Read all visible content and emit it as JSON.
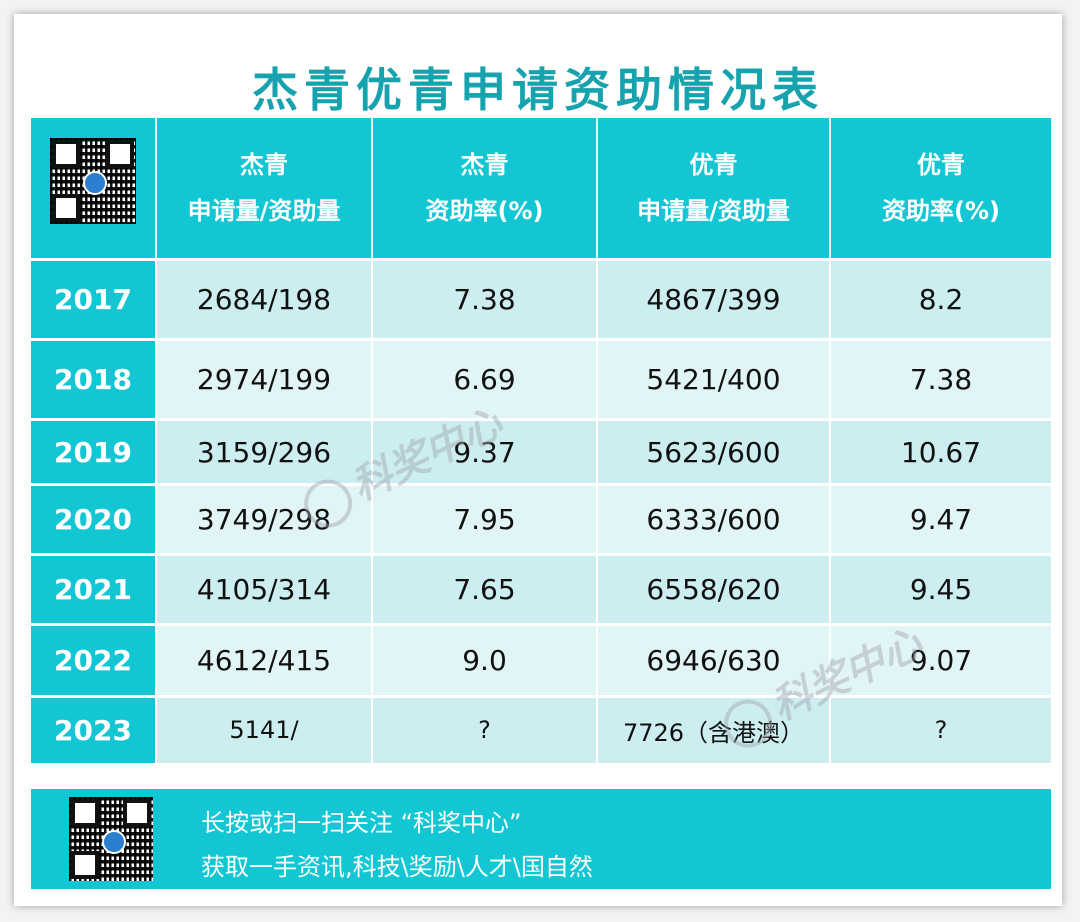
{
  "title": "杰青优青申请资助情况表",
  "header": {
    "col1": [
      "杰青",
      "申请量/资助量"
    ],
    "col2": [
      "杰青",
      "资助率(%)"
    ],
    "col3": [
      "优青",
      "申请量/资助量"
    ],
    "col4": [
      "优青",
      "资助率(%)"
    ]
  },
  "rows": [
    {
      "year": "2017",
      "jq_apply": "2684/198",
      "jq_rate": "7.38",
      "yq_apply": "4867/399",
      "yq_rate": "8.2"
    },
    {
      "year": "2018",
      "jq_apply": "2974/199",
      "jq_rate": "6.69",
      "yq_apply": "5421/400",
      "yq_rate": "7.38"
    },
    {
      "year": "2019",
      "jq_apply": "3159/296",
      "jq_rate": "9.37",
      "yq_apply": "5623/600",
      "yq_rate": "10.67"
    },
    {
      "year": "2020",
      "jq_apply": "3749/298",
      "jq_rate": "7.95",
      "yq_apply": "6333/600",
      "yq_rate": "9.47"
    },
    {
      "year": "2021",
      "jq_apply": "4105/314",
      "jq_rate": "7.65",
      "yq_apply": "6558/620",
      "yq_rate": "9.45"
    },
    {
      "year": "2022",
      "jq_apply": "4612/415",
      "jq_rate": "9.0",
      "yq_apply": "6946/630",
      "yq_rate": "9.07"
    },
    {
      "year": "2023",
      "jq_apply": "5141/",
      "jq_rate": "?",
      "yq_apply": "7726（含港澳）",
      "yq_rate": "?"
    }
  ],
  "footer": {
    "line1": "长按或扫一扫关注 “科奖中心”",
    "line2": "获取一手资讯,科技\\奖励\\人才\\国自然"
  },
  "watermark": "科奖中心",
  "icons": {
    "qr": "qr-code-icon",
    "watermark_logo": "kejiang-logo-icon"
  },
  "colors": {
    "accent": "#12c7d3",
    "title": "#17a3ad",
    "row_odd": "#cdeef0",
    "row_even": "#e2f5f6"
  }
}
